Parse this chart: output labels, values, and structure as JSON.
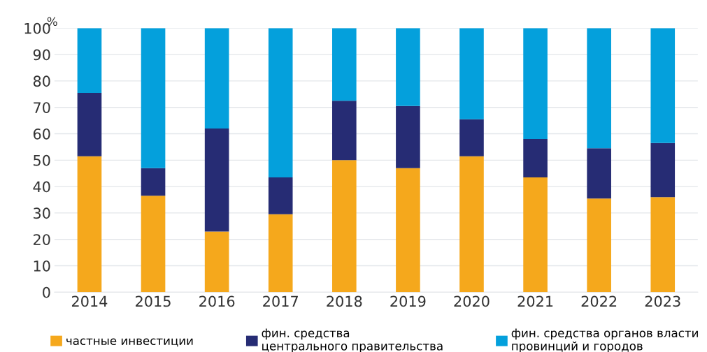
{
  "chart_data": {
    "type": "bar",
    "stacked": true,
    "ylabel": "%",
    "categories": [
      "2014",
      "2015",
      "2016",
      "2017",
      "2018",
      "2019",
      "2020",
      "2021",
      "2022",
      "2023"
    ],
    "series": [
      {
        "name": "частные инвестиции",
        "color": "#f5a81c",
        "values": [
          51.5,
          36.5,
          23,
          29.5,
          50,
          47,
          51.5,
          43.5,
          35.5,
          36
        ]
      },
      {
        "name": "фин. средства\nцентрального правительства",
        "color": "#262c74",
        "values": [
          24,
          10.5,
          39,
          14,
          22.5,
          23.5,
          14,
          14.5,
          19,
          20.5
        ]
      },
      {
        "name": "фин. средства органов власти\nпровинций и городов",
        "color": "#04a0dc",
        "values": [
          24.5,
          53,
          38,
          56.5,
          27.5,
          29.5,
          34.5,
          42,
          45.5,
          43.5
        ]
      }
    ],
    "ylim": [
      0,
      100
    ],
    "yticks": [
      0,
      10,
      20,
      30,
      40,
      50,
      60,
      70,
      80,
      90,
      100
    ],
    "grid": "y",
    "legend": "bottom"
  }
}
